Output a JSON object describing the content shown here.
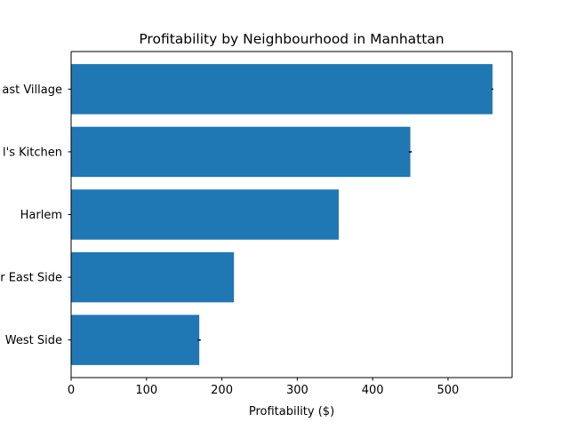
{
  "chart_data": {
    "type": "bar",
    "orientation": "horizontal",
    "title": "Profitability by Neighbourhood in Manhattan",
    "xlabel": "Profitability ($)",
    "ylabel": "",
    "categories": [
      "West Side",
      "r East Side",
      "Harlem",
      "l's Kitchen",
      "ast Village"
    ],
    "values": [
      170,
      216,
      355,
      450,
      559
    ],
    "error_bars": [
      2,
      0,
      0,
      2,
      1
    ],
    "xlim": [
      0,
      585
    ],
    "xticks": [
      0,
      100,
      200,
      300,
      400,
      500
    ],
    "grid": false,
    "legend": "none",
    "bar_color": "#1f77b4",
    "error_color": "#000000"
  }
}
